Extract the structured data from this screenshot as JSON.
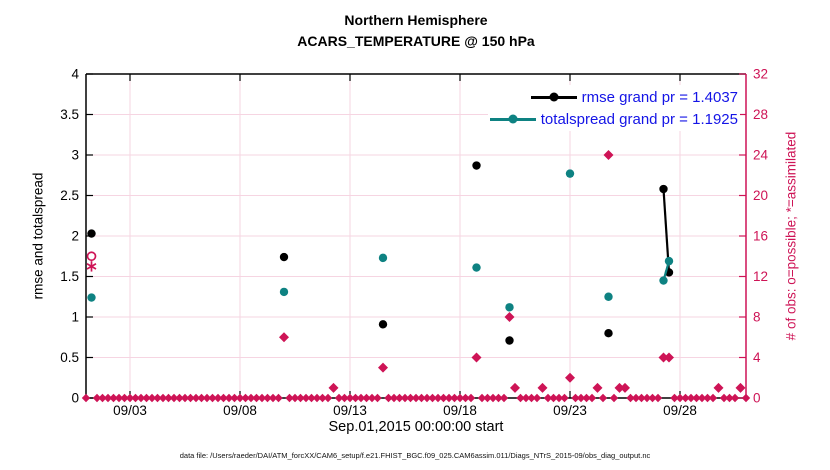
{
  "chart_data": {
    "type": "line",
    "title_line1": "Northern Hemisphere",
    "title_line2": "ACARS_TEMPERATURE @ 150 hPa",
    "xlabel": "Sep.01,2015 00:00:00 start",
    "ylabel_left": "rmse and totalspread",
    "ylabel_right": "# of obs: o=possible; *=assimilated",
    "caption": "data file: /Users/raeder/DAI/ATM_forcXX/CAM6_setup/f.e21.FHIST_BGC.f09_025.CAM6assim.011/Diags_NTrS_2015-09/obs_diag_output.nc",
    "colors": {
      "rmse": "#000000",
      "totalspread": "#0E8282",
      "obs": "#CE1456",
      "grid": "#f6d5e2",
      "legend_text": "#1414e6",
      "axis": "#000000"
    },
    "x_domain_days": [
      1,
      31
    ],
    "x_ticks": [
      {
        "day": 3,
        "label": "09/03"
      },
      {
        "day": 8,
        "label": "09/08"
      },
      {
        "day": 13,
        "label": "09/13"
      },
      {
        "day": 18,
        "label": "09/18"
      },
      {
        "day": 23,
        "label": "09/23"
      },
      {
        "day": 28,
        "label": "09/28"
      }
    ],
    "y_left": {
      "min": 0,
      "max": 4,
      "ticks": [
        0,
        0.5,
        1,
        1.5,
        2,
        2.5,
        3,
        3.5,
        4
      ],
      "tick_labels": [
        "0",
        "0.5",
        "1",
        "1.5",
        "2",
        "2.5",
        "3",
        "3.5",
        "4"
      ]
    },
    "y_right": {
      "min": 0,
      "max": 32,
      "ticks": [
        0,
        4,
        8,
        12,
        16,
        20,
        24,
        28,
        32
      ],
      "tick_labels": [
        "0",
        "4",
        "8",
        "12",
        "16",
        "20",
        "24",
        "28",
        "32"
      ]
    },
    "legend": [
      {
        "series": "rmse",
        "label": "rmse grand pr = 1.4037"
      },
      {
        "series": "totalspread",
        "label": "totalspread grand pr = 1.1925"
      }
    ],
    "series": {
      "rmse": {
        "points": [
          [
            1.25,
            2.03
          ],
          [
            10.0,
            1.74
          ],
          [
            14.5,
            0.91
          ],
          [
            18.75,
            2.87
          ],
          [
            20.25,
            0.71
          ],
          [
            24.75,
            0.8
          ],
          [
            27.25,
            2.58
          ],
          [
            27.5,
            1.55
          ]
        ]
      },
      "totalspread": {
        "points": [
          [
            1.25,
            1.24
          ],
          [
            10.0,
            1.31
          ],
          [
            14.5,
            1.73
          ],
          [
            18.75,
            1.61
          ],
          [
            20.25,
            1.12
          ],
          [
            23.0,
            2.77
          ],
          [
            24.75,
            1.25
          ],
          [
            27.25,
            1.45
          ],
          [
            27.5,
            1.69
          ]
        ]
      }
    },
    "n_obs": {
      "points": [
        {
          "day": 1.25,
          "possible": 14,
          "assimilated": 13
        },
        {
          "day": 10.0,
          "possible": 6,
          "assimilated": 6
        },
        {
          "day": 12.25,
          "possible": 1,
          "assimilated": 1
        },
        {
          "day": 14.5,
          "possible": 3,
          "assimilated": 3
        },
        {
          "day": 18.75,
          "possible": 4,
          "assimilated": 4
        },
        {
          "day": 20.25,
          "possible": 8,
          "assimilated": 8
        },
        {
          "day": 20.5,
          "possible": 1,
          "assimilated": 1
        },
        {
          "day": 21.75,
          "possible": 1,
          "assimilated": 1
        },
        {
          "day": 23.0,
          "possible": 2,
          "assimilated": 2
        },
        {
          "day": 24.25,
          "possible": 1,
          "assimilated": 1
        },
        {
          "day": 24.75,
          "possible": 24,
          "assimilated": 24
        },
        {
          "day": 25.25,
          "possible": 1,
          "assimilated": 1
        },
        {
          "day": 25.5,
          "possible": 1,
          "assimilated": 1
        },
        {
          "day": 27.25,
          "possible": 4,
          "assimilated": 4
        },
        {
          "day": 27.5,
          "possible": 4,
          "assimilated": 4
        },
        {
          "day": 29.75,
          "possible": 1,
          "assimilated": 1
        },
        {
          "day": 30.75,
          "possible": 1,
          "assimilated": 1
        }
      ],
      "zero_run": {
        "start": 1.0,
        "end": 31.0,
        "step": 0.25
      }
    }
  }
}
